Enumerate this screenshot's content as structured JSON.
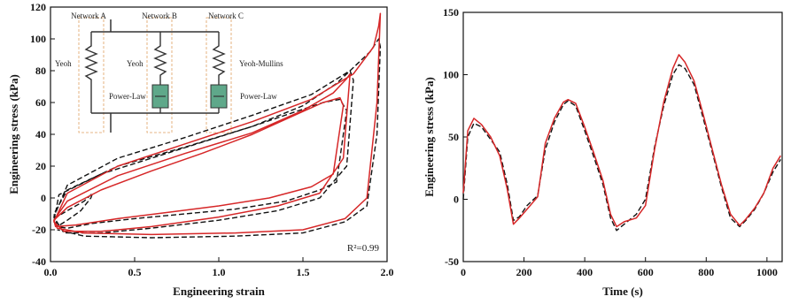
{
  "chart_data": [
    {
      "type": "line",
      "xlabel": "Engineering strain",
      "ylabel": "Engineering stress (kPa)",
      "xlim": [
        0.0,
        2.0
      ],
      "ylim": [
        -40,
        120
      ],
      "xticks": [
        "0.0",
        "0.5",
        "1.0",
        "1.5",
        "2.0"
      ],
      "yticks": [
        "-40",
        "-20",
        "0",
        "20",
        "40",
        "60",
        "80",
        "100",
        "120"
      ],
      "annotation": "R²=0.99",
      "grid": false,
      "series": [
        {
          "style": "dashed",
          "color": "#111111",
          "x": [
            0.02,
            0.1,
            0.2,
            0.25,
            0.24,
            0.18,
            0.1,
            0.04,
            0.02,
            0.05,
            0.3,
            0.6,
            0.9,
            1.2,
            1.45,
            1.62,
            1.72,
            1.76,
            1.7,
            1.6,
            1.4,
            1.1,
            0.8,
            0.5,
            0.25,
            0.1,
            0.04,
            0.02,
            0.1,
            0.4,
            0.8,
            1.2,
            1.5,
            1.7,
            1.78,
            1.8,
            1.76,
            1.6,
            1.35,
            1.0,
            0.6,
            0.3,
            0.08,
            0.02,
            0.1,
            0.4,
            0.8,
            1.2,
            1.55,
            1.78,
            1.9,
            1.95,
            1.96,
            1.94,
            1.88,
            1.75,
            1.5,
            1.1,
            0.6,
            0.2,
            0.04
          ],
          "y": [
            -13,
            -8,
            -2,
            3,
            0,
            -8,
            -14,
            -18,
            -15,
            2,
            15,
            25,
            35,
            45,
            54,
            60,
            62,
            55,
            10,
            5,
            -2,
            -7,
            -10,
            -13,
            -16,
            -19,
            -18,
            -10,
            5,
            20,
            32,
            45,
            58,
            72,
            80,
            74,
            20,
            0,
            -8,
            -14,
            -19,
            -22,
            -22,
            -12,
            8,
            25,
            38,
            52,
            65,
            80,
            92,
            100,
            95,
            40,
            -5,
            -15,
            -22,
            -24,
            -25,
            -24,
            -20
          ]
        },
        {
          "style": "solid",
          "color": "#d62728",
          "x": [
            0.02,
            0.1,
            0.3,
            0.6,
            0.9,
            1.2,
            1.45,
            1.62,
            1.72,
            1.74,
            1.68,
            1.55,
            1.3,
            1.0,
            0.7,
            0.4,
            0.15,
            0.03,
            0.02,
            0.1,
            0.4,
            0.8,
            1.2,
            1.5,
            1.68,
            1.76,
            1.78,
            1.74,
            1.6,
            1.35,
            1.0,
            0.6,
            0.3,
            0.08,
            0.02,
            0.1,
            0.4,
            0.8,
            1.2,
            1.55,
            1.8,
            1.92,
            1.95,
            1.96,
            1.94,
            1.88,
            1.75,
            1.5,
            1.1,
            0.6,
            0.2,
            0.04,
            0.02
          ],
          "y": [
            -14,
            -6,
            5,
            17,
            28,
            40,
            52,
            60,
            63,
            58,
            15,
            7,
            0,
            -5,
            -9,
            -13,
            -17,
            -18,
            -14,
            -2,
            14,
            28,
            41,
            55,
            66,
            75,
            78,
            25,
            3,
            -5,
            -12,
            -18,
            -21,
            -21,
            -15,
            3,
            20,
            34,
            48,
            62,
            78,
            95,
            108,
            116,
            60,
            0,
            -13,
            -20,
            -22,
            -23,
            -22,
            -19,
            -14
          ]
        }
      ]
    },
    {
      "type": "line",
      "xlabel": "Time (s)",
      "ylabel": "Engineering stress (kPa)",
      "xlim": [
        0,
        1050
      ],
      "ylim": [
        -50,
        150
      ],
      "xticks": [
        "0",
        "200",
        "400",
        "600",
        "800",
        "1000"
      ],
      "yticks": [
        "-50",
        "0",
        "50",
        "100",
        "150"
      ],
      "grid": false,
      "series": [
        {
          "style": "dashed",
          "color": "#111111",
          "x": [
            0,
            15,
            35,
            60,
            90,
            120,
            145,
            165,
            185,
            210,
            245,
            270,
            300,
            330,
            345,
            370,
            400,
            430,
            460,
            485,
            505,
            530,
            570,
            600,
            630,
            660,
            690,
            710,
            730,
            760,
            790,
            820,
            850,
            880,
            910,
            930,
            960,
            990,
            1020,
            1045
          ],
          "y": [
            0,
            50,
            61,
            58,
            48,
            38,
            12,
            -17,
            -14,
            -5,
            3,
            40,
            62,
            76,
            79,
            75,
            55,
            34,
            12,
            -15,
            -25,
            -20,
            -12,
            0,
            42,
            75,
            100,
            108,
            105,
            92,
            65,
            38,
            10,
            -15,
            -22,
            -17,
            -8,
            5,
            22,
            32
          ]
        },
        {
          "style": "solid",
          "color": "#d62728",
          "x": [
            0,
            15,
            35,
            60,
            90,
            120,
            145,
            165,
            185,
            210,
            245,
            270,
            300,
            330,
            345,
            370,
            400,
            430,
            460,
            485,
            505,
            530,
            570,
            600,
            630,
            660,
            690,
            710,
            730,
            760,
            790,
            820,
            850,
            880,
            910,
            930,
            960,
            990,
            1020,
            1045
          ],
          "y": [
            5,
            55,
            65,
            60,
            50,
            35,
            8,
            -20,
            -15,
            -8,
            2,
            45,
            65,
            78,
            80,
            77,
            58,
            37,
            15,
            -12,
            -22,
            -18,
            -15,
            -5,
            40,
            78,
            105,
            116,
            110,
            95,
            68,
            40,
            12,
            -12,
            -21,
            -16,
            -7,
            5,
            25,
            35
          ]
        }
      ]
    }
  ],
  "inset": {
    "networks": [
      "Network A",
      "Network B",
      "Network C"
    ],
    "spring_labels": [
      "Yeoh",
      "Yeoh",
      "Yeoh-Mullins"
    ],
    "damper_labels": [
      "Power-Law",
      "Power-Law"
    ]
  }
}
